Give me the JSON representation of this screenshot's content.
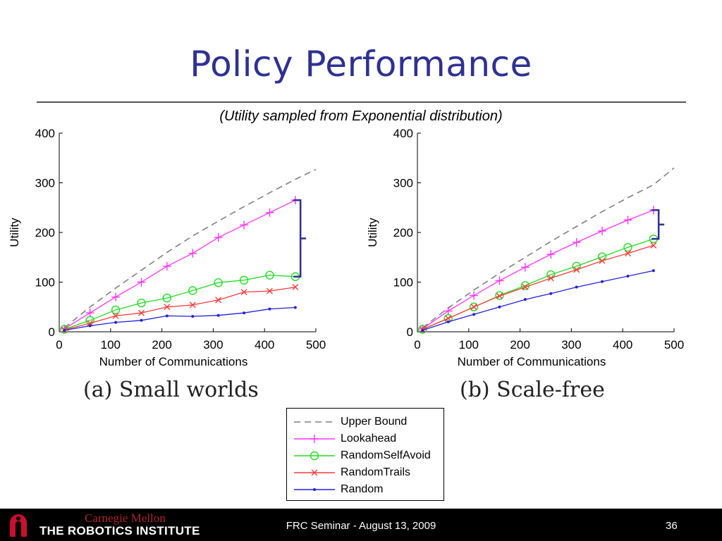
{
  "slide": {
    "title": "Policy Performance",
    "subtitle": "(Utility sampled from Exponential distribution)"
  },
  "chart_data": [
    {
      "type": "line",
      "caption": "(a) Small worlds",
      "xlabel": "Number of Communications",
      "ylabel": "Utility",
      "xlim": [
        0,
        500
      ],
      "ylim": [
        0,
        400
      ],
      "xticks": [
        0,
        100,
        200,
        300,
        400,
        500
      ],
      "yticks": [
        0,
        100,
        200,
        300,
        400
      ],
      "grid": false,
      "series": [
        {
          "name": "Upper Bound",
          "x": [
            10,
            60,
            110,
            160,
            210,
            260,
            310,
            360,
            410,
            460,
            500
          ],
          "y": [
            8,
            50,
            88,
            124,
            160,
            193,
            223,
            252,
            280,
            307,
            327
          ]
        },
        {
          "name": "Lookahead",
          "x": [
            10,
            60,
            110,
            160,
            210,
            260,
            310,
            360,
            410,
            460
          ],
          "y": [
            6,
            38,
            70,
            100,
            132,
            158,
            190,
            215,
            240,
            265
          ]
        },
        {
          "name": "RandomSelfAvoid",
          "x": [
            10,
            60,
            110,
            160,
            210,
            260,
            310,
            360,
            410,
            460
          ],
          "y": [
            5,
            23,
            44,
            58,
            68,
            83,
            99,
            104,
            114,
            111
          ]
        },
        {
          "name": "RandomTrails",
          "x": [
            10,
            60,
            110,
            160,
            210,
            260,
            310,
            360,
            410,
            460
          ],
          "y": [
            4,
            17,
            32,
            38,
            50,
            54,
            64,
            80,
            82,
            90
          ]
        },
        {
          "name": "Random",
          "x": [
            10,
            60,
            110,
            160,
            210,
            260,
            310,
            360,
            410,
            460
          ],
          "y": [
            3,
            12,
            19,
            23,
            32,
            31,
            33,
            38,
            46,
            49
          ]
        }
      ],
      "annotation": {
        "type": "bracket",
        "x": 470,
        "y_top": 265,
        "y_bottom": 111
      }
    },
    {
      "type": "line",
      "caption": "(b) Scale-free",
      "xlabel": "Number of Communications",
      "ylabel": "Utility",
      "xlim": [
        0,
        500
      ],
      "ylim": [
        0,
        400
      ],
      "xticks": [
        0,
        100,
        200,
        300,
        400,
        500
      ],
      "yticks": [
        0,
        100,
        200,
        300,
        400
      ],
      "grid": false,
      "series": [
        {
          "name": "Upper Bound",
          "x": [
            10,
            60,
            110,
            160,
            210,
            260,
            310,
            360,
            410,
            460,
            500
          ],
          "y": [
            8,
            48,
            84,
            118,
            150,
            182,
            212,
            242,
            270,
            296,
            330
          ]
        },
        {
          "name": "Lookahead",
          "x": [
            10,
            60,
            110,
            160,
            210,
            260,
            310,
            360,
            410,
            460
          ],
          "y": [
            6,
            42,
            73,
            103,
            130,
            156,
            180,
            203,
            225,
            245
          ]
        },
        {
          "name": "RandomSelfAvoid",
          "x": [
            10,
            60,
            110,
            160,
            210,
            260,
            310,
            360,
            410,
            460
          ],
          "y": [
            5,
            27,
            50,
            73,
            93,
            115,
            132,
            151,
            170,
            187
          ]
        },
        {
          "name": "RandomTrails",
          "x": [
            10,
            60,
            110,
            160,
            210,
            260,
            310,
            360,
            410,
            460
          ],
          "y": [
            5,
            27,
            50,
            72,
            90,
            108,
            125,
            143,
            158,
            174
          ]
        },
        {
          "name": "Random",
          "x": [
            10,
            60,
            110,
            160,
            210,
            260,
            310,
            360,
            410,
            460
          ],
          "y": [
            3,
            20,
            35,
            50,
            65,
            77,
            90,
            101,
            112,
            123
          ]
        }
      ],
      "annotation": {
        "type": "bracket",
        "x": 470,
        "y_top": 245,
        "y_bottom": 187
      }
    }
  ],
  "styles": {
    "Upper Bound": {
      "color": "#808080",
      "marker": "none",
      "dash": true
    },
    "Lookahead": {
      "color": "#ff33ff",
      "marker": "plus"
    },
    "RandomSelfAvoid": {
      "color": "#22dd22",
      "marker": "circle"
    },
    "RandomTrails": {
      "color": "#ff3b3b",
      "marker": "x"
    },
    "Random": {
      "color": "#2222dd",
      "marker": "dot"
    },
    "bracket_color": "#2e3192"
  },
  "legend": {
    "items": [
      {
        "label": "Upper Bound"
      },
      {
        "label": "Lookahead"
      },
      {
        "label": "RandomSelfAvoid"
      },
      {
        "label": "RandomTrails"
      },
      {
        "label": "Random"
      }
    ]
  },
  "footer": {
    "cmu": "Carnegie Mellon",
    "institute": "THE ROBOTICS INSTITUTE",
    "center": "FRC Seminar - August 13, 2009",
    "page": "36"
  }
}
